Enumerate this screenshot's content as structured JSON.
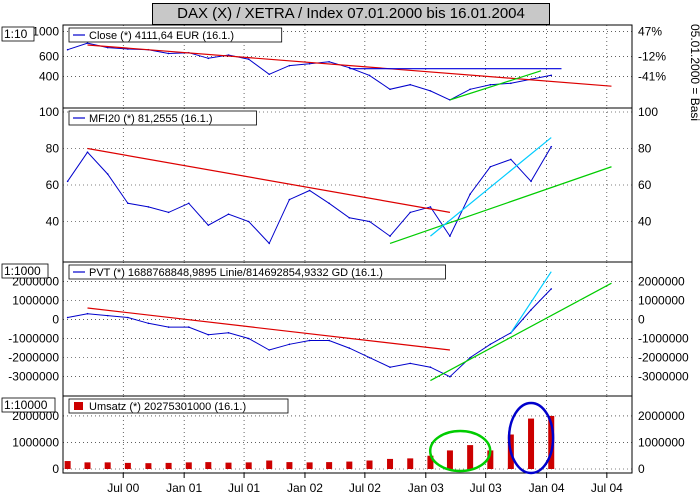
{
  "title": "DAX (X) / XETRA / Index 07.01.2000 bis 16.01.2004",
  "right_vertical_label": "05.01.2000 = Basi",
  "colors": {
    "close_line": "#0000cc",
    "trend_red": "#dd0000",
    "trend_green": "#00cc00",
    "trend_blue": "#0000dd",
    "trend_cyan": "#00ccff",
    "volume_bar": "#cc0000",
    "pvt_avg": "#88bb88",
    "highlight_green": "#00cc00",
    "highlight_blue": "#0000cc",
    "frame": "#000000"
  },
  "x_axis": {
    "ticks": [
      "Jul 00",
      "Jan 01",
      "Jul 01",
      "Jan 02",
      "Jul 02",
      "Jan 03",
      "Jul 03",
      "Jan 04",
      "Jul 04"
    ]
  },
  "chart_data": [
    {
      "type": "line",
      "panel": "price",
      "scale_label": "1:10",
      "legend": "Close (*) 4111,64 EUR (16.1.)",
      "y_scale": "log",
      "y_ticks_left": [
        1000,
        600,
        400
      ],
      "y_ticks_right": [
        "47%",
        "-12%",
        "-41%"
      ],
      "ylim": [
        230,
        1050
      ],
      "series": [
        {
          "x": [
            "2000-01",
            "2000-03",
            "2000-05",
            "2000-07",
            "2000-09",
            "2000-11",
            "2001-01",
            "2001-03",
            "2001-05",
            "2001-07",
            "2001-09",
            "2001-11",
            "2002-01",
            "2002-03",
            "2002-05",
            "2002-07",
            "2002-09",
            "2002-11",
            "2003-01",
            "2003-03",
            "2003-05",
            "2003-07",
            "2003-09",
            "2003-11",
            "2004-01"
          ],
          "values": [
            690,
            790,
            720,
            700,
            690,
            640,
            650,
            580,
            620,
            570,
            420,
            500,
            520,
            540,
            480,
            410,
            310,
            340,
            300,
            250,
            310,
            340,
            350,
            380,
            411
          ]
        }
      ],
      "trendlines": [
        {
          "color": "red",
          "from": [
            "2000-03",
            760
          ],
          "to": [
            "2004-07",
            330
          ]
        },
        {
          "color": "blue",
          "from": [
            "2002-05",
            470
          ],
          "to": [
            "2004-02",
            470
          ]
        },
        {
          "color": "green",
          "from": [
            "2003-03",
            250
          ],
          "to": [
            "2003-12",
            450
          ]
        }
      ]
    },
    {
      "type": "line",
      "panel": "mfi",
      "legend": "MFI20 (*) 81,2555 (16.1.)",
      "y_ticks": [
        100,
        80,
        60,
        40
      ],
      "ylim": [
        20,
        100
      ],
      "series": [
        {
          "x": [
            "2000-01",
            "2000-03",
            "2000-05",
            "2000-07",
            "2000-09",
            "2000-11",
            "2001-01",
            "2001-03",
            "2001-05",
            "2001-07",
            "2001-09",
            "2001-11",
            "2002-01",
            "2002-03",
            "2002-05",
            "2002-07",
            "2002-09",
            "2002-11",
            "2003-01",
            "2003-03",
            "2003-05",
            "2003-07",
            "2003-09",
            "2003-11",
            "2004-01"
          ],
          "values": [
            62,
            78,
            66,
            50,
            48,
            45,
            50,
            38,
            44,
            40,
            28,
            52,
            57,
            50,
            42,
            40,
            32,
            45,
            48,
            32,
            55,
            70,
            74,
            62,
            81
          ]
        }
      ],
      "trendlines": [
        {
          "color": "red",
          "from": [
            "2000-03",
            80
          ],
          "to": [
            "2003-03",
            45
          ]
        },
        {
          "color": "green",
          "from": [
            "2002-09",
            28
          ],
          "to": [
            "2004-07",
            70
          ]
        },
        {
          "color": "cyan",
          "from": [
            "2003-01",
            32
          ],
          "to": [
            "2004-01",
            86
          ]
        }
      ]
    },
    {
      "type": "line",
      "panel": "pvt",
      "scale_label": "1:1000",
      "legend": "PVT (*) 1688768848,9895 Linie/814692854,9332 GD (16.1.)",
      "y_ticks": [
        2000000,
        1000000,
        0,
        -1000000,
        -2000000,
        -3000000
      ],
      "ylim": [
        -3800000,
        2800000
      ],
      "series": [
        {
          "x": [
            "2000-01",
            "2000-03",
            "2000-05",
            "2000-07",
            "2000-09",
            "2000-11",
            "2001-01",
            "2001-03",
            "2001-05",
            "2001-07",
            "2001-09",
            "2001-11",
            "2002-01",
            "2002-03",
            "2002-05",
            "2002-07",
            "2002-09",
            "2002-11",
            "2003-01",
            "2003-03",
            "2003-05",
            "2003-07",
            "2003-09",
            "2003-11",
            "2004-01"
          ],
          "values": [
            100000,
            300000,
            200000,
            100000,
            -200000,
            -400000,
            -400000,
            -800000,
            -700000,
            -1000000,
            -1600000,
            -1300000,
            -1100000,
            -1100000,
            -1500000,
            -2000000,
            -2500000,
            -2300000,
            -2500000,
            -3000000,
            -2000000,
            -1300000,
            -700000,
            500000,
            1600000
          ]
        }
      ],
      "trendlines": [
        {
          "color": "red",
          "from": [
            "2000-03",
            600000
          ],
          "to": [
            "2003-03",
            -1600000
          ]
        },
        {
          "color": "green",
          "from": [
            "2003-01",
            -3200000
          ],
          "to": [
            "2004-07",
            1900000
          ]
        },
        {
          "color": "cyan",
          "from": [
            "2003-09",
            -700000
          ],
          "to": [
            "2004-01",
            2500000
          ]
        }
      ]
    },
    {
      "type": "bar",
      "panel": "volume",
      "scale_label": "1:10000",
      "legend": "Umsatz (*) 20275301000 (16.1.)",
      "y_ticks": [
        2000000,
        1000000,
        0
      ],
      "ylim": [
        0,
        2600000
      ],
      "series": [
        {
          "x": [
            "2000-01",
            "2000-03",
            "2000-05",
            "2000-07",
            "2000-09",
            "2000-11",
            "2001-01",
            "2001-03",
            "2001-05",
            "2001-07",
            "2001-09",
            "2001-11",
            "2002-01",
            "2002-03",
            "2002-05",
            "2002-07",
            "2002-09",
            "2002-11",
            "2003-01",
            "2003-03",
            "2003-05",
            "2003-07",
            "2003-09",
            "2003-11",
            "2004-01"
          ],
          "values": [
            300000,
            250000,
            250000,
            230000,
            220000,
            230000,
            250000,
            260000,
            240000,
            250000,
            320000,
            260000,
            250000,
            260000,
            280000,
            320000,
            380000,
            400000,
            500000,
            700000,
            900000,
            700000,
            1300000,
            1900000,
            2000000
          ]
        }
      ]
    }
  ]
}
